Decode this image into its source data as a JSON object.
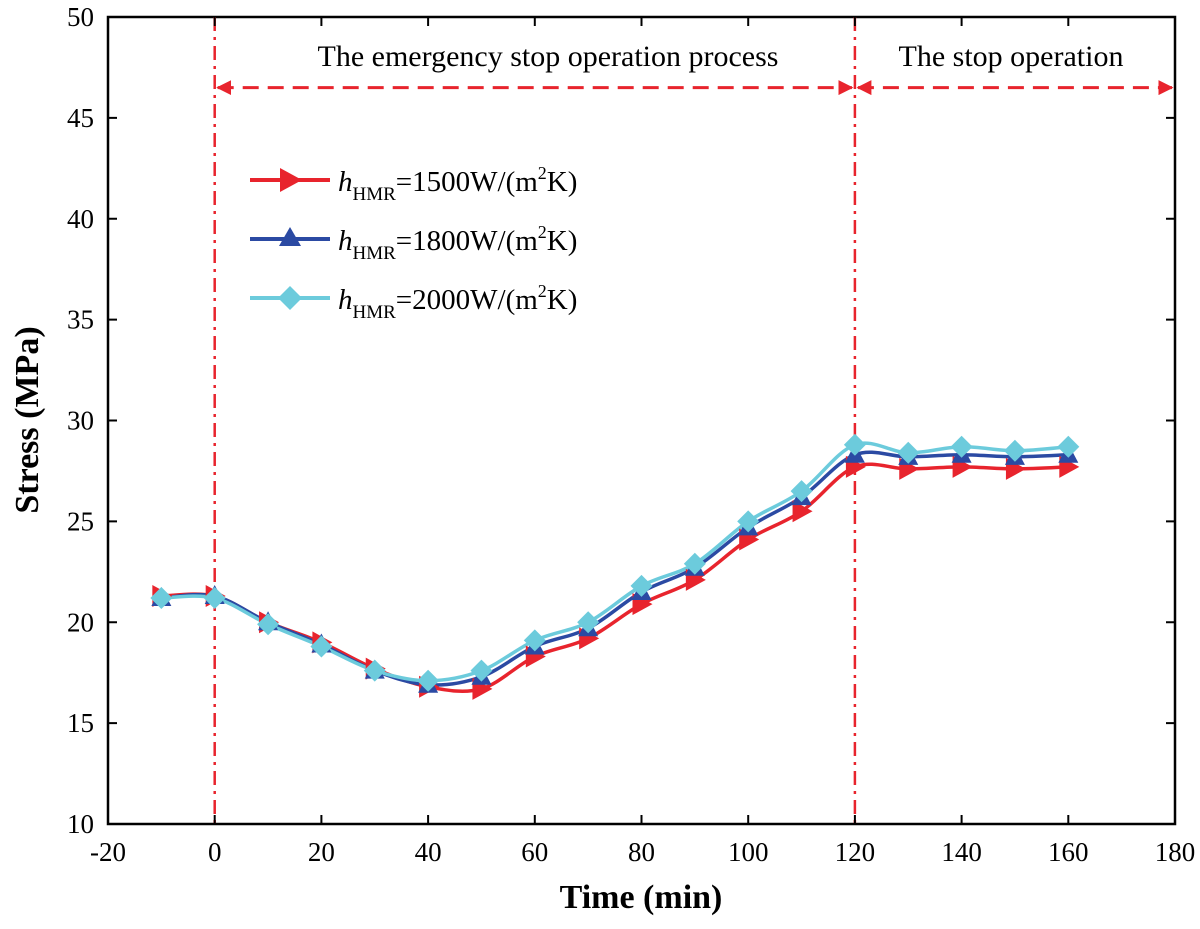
{
  "chart_data": {
    "type": "line",
    "title": "",
    "xlabel": "Time (min)",
    "ylabel": "Stress (MPa)",
    "xlim": [
      -20,
      180
    ],
    "ylim": [
      10,
      50
    ],
    "xticks": [
      -20,
      0,
      20,
      40,
      60,
      80,
      100,
      120,
      140,
      160,
      180
    ],
    "yticks": [
      10,
      15,
      20,
      25,
      30,
      35,
      40,
      45,
      50
    ],
    "grid": false,
    "legend_position": "top-left",
    "x": [
      -10,
      0,
      10,
      20,
      30,
      40,
      50,
      60,
      70,
      80,
      90,
      100,
      110,
      120,
      130,
      140,
      150,
      160
    ],
    "series": [
      {
        "name": "hHMR=1500W/(m2K)",
        "legend_italic": "h",
        "legend_sub": "HMR",
        "legend_mid": "=1500W/(m",
        "legend_sup": "2",
        "legend_end": "K)",
        "color": "#e8242d",
        "marker": "triangle-right",
        "values": [
          21.3,
          21.3,
          20.0,
          19.0,
          17.7,
          16.8,
          16.7,
          18.3,
          19.2,
          20.9,
          22.1,
          24.1,
          25.5,
          27.7,
          27.6,
          27.7,
          27.6,
          27.7
        ]
      },
      {
        "name": "hHMR=1800W/(m2K)",
        "legend_italic": "h",
        "legend_sub": "HMR",
        "legend_mid": "=1800W/(m",
        "legend_sup": "2",
        "legend_end": "K)",
        "color": "#2b4aa3",
        "marker": "triangle-up",
        "values": [
          21.2,
          21.3,
          20.0,
          18.9,
          17.6,
          16.9,
          17.3,
          18.8,
          19.7,
          21.5,
          22.7,
          24.7,
          26.2,
          28.3,
          28.2,
          28.3,
          28.2,
          28.3
        ]
      },
      {
        "name": "hHMR=2000W/(m2K)",
        "legend_italic": "h",
        "legend_sub": "HMR",
        "legend_mid": "=2000W/(m",
        "legend_sup": "2",
        "legend_end": "K)",
        "color": "#6ccbdc",
        "marker": "diamond",
        "values": [
          21.2,
          21.2,
          19.9,
          18.8,
          17.6,
          17.1,
          17.6,
          19.1,
          20.0,
          21.8,
          22.9,
          25.0,
          26.5,
          28.8,
          28.4,
          28.7,
          28.5,
          28.7
        ]
      }
    ],
    "reference_lines": [
      {
        "x": 0,
        "color": "#e8242d",
        "style": "dash-dot"
      },
      {
        "x": 120,
        "color": "#e8242d",
        "style": "dash-dot"
      }
    ],
    "annotations": [
      {
        "text": "The emergency stop operation process",
        "x_from": 0,
        "x_to": 120,
        "y": 46.5,
        "arrow": "double",
        "color": "#e8242d"
      },
      {
        "text": "The stop operation",
        "x_from": 120,
        "x_to": 180,
        "y": 46.5,
        "arrow": "double",
        "color": "#e8242d"
      }
    ]
  }
}
